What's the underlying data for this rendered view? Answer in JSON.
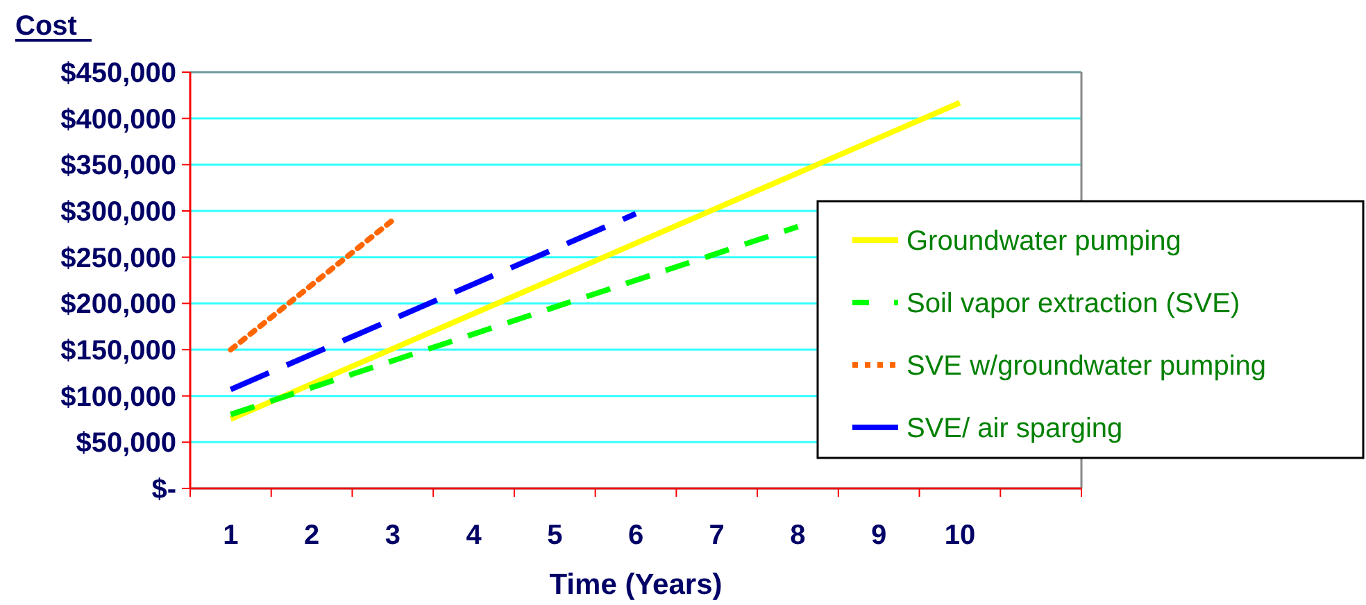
{
  "chart_data": {
    "type": "line",
    "ylabel": "Cost",
    "xlabel": "Time (Years)",
    "categories": [
      "1",
      "2",
      "3",
      "4",
      "5",
      "6",
      "7",
      "8",
      "9",
      "10",
      null
    ],
    "series": [
      {
        "name": "Groundwater pumping",
        "color": "#ffff00",
        "line_style": "solid",
        "values": [
          75000,
          113000,
          151000,
          189000,
          227000,
          265000,
          303000,
          341000,
          379000,
          417000,
          null
        ]
      },
      {
        "name": "Soil vapor extraction (SVE)",
        "color": "#00ff00",
        "line_style": "dashed",
        "values": [
          80000,
          109000,
          138000,
          167000,
          196000,
          225000,
          254000,
          283000,
          null,
          null,
          null
        ]
      },
      {
        "name": "SVE w/groundwater pumping",
        "color": "#ff6600",
        "line_style": "dotted",
        "values": [
          150000,
          220000,
          290000,
          null,
          null,
          null,
          null,
          null,
          null,
          null,
          null
        ]
      },
      {
        "name": "SVE/ air sparging",
        "color": "#0000ff",
        "line_style": "dashed",
        "values": [
          107000,
          145000,
          183000,
          221000,
          259000,
          297000,
          null,
          null,
          null,
          null,
          null
        ]
      }
    ],
    "ylim": [
      0,
      450000
    ],
    "yticks": [
      {
        "value": 0,
        "label": "$-"
      },
      {
        "value": 50000,
        "label": "$50,000"
      },
      {
        "value": 100000,
        "label": "$100,000"
      },
      {
        "value": 150000,
        "label": "$150,000"
      },
      {
        "value": 200000,
        "label": "$200,000"
      },
      {
        "value": 250000,
        "label": "$250,000"
      },
      {
        "value": 300000,
        "label": "$300,000"
      },
      {
        "value": 350000,
        "label": "$350,000"
      },
      {
        "value": 400000,
        "label": "$400,000"
      },
      {
        "value": 450000,
        "label": "$450,000"
      }
    ],
    "grid": "y",
    "legend": "right"
  }
}
